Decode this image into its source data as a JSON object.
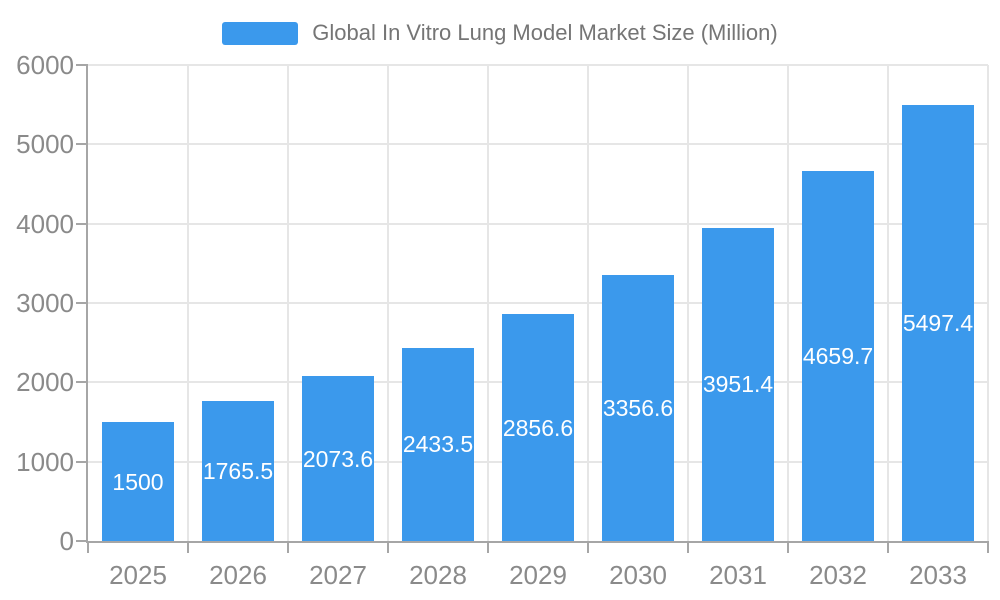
{
  "legend": {
    "label": "Global In Vitro Lung Model Market Size (Million)"
  },
  "chart_data": {
    "type": "bar",
    "title": "Global In Vitro Lung Model Market Size (Million)",
    "legend_entries": [
      "Global In Vitro Lung Model Market Size (Million)"
    ],
    "legend_position": "top-center",
    "categories": [
      "2025",
      "2026",
      "2027",
      "2028",
      "2029",
      "2030",
      "2031",
      "2032",
      "2033"
    ],
    "values": [
      1500,
      1765.5,
      2073.6,
      2433.5,
      2856.6,
      3356.6,
      3951.4,
      4659.7,
      5497.4
    ],
    "value_labels": [
      "1500",
      "1765.5",
      "2073.6",
      "2433.5",
      "2856.6",
      "3356.6",
      "3951.4",
      "4659.7",
      "5497.4"
    ],
    "value_label_position": "inside-center",
    "xlabel": "",
    "ylabel": "",
    "ylim": [
      0,
      6000
    ],
    "yticks": [
      0,
      1000,
      2000,
      3000,
      4000,
      5000,
      6000
    ],
    "ytick_labels": [
      "0",
      "1000",
      "2000",
      "3000",
      "4000",
      "5000",
      "6000"
    ],
    "grid": true
  },
  "colors": {
    "bar": "#3B99EC",
    "bar_label": "#ffffff",
    "axis_line": "#a6a6a6",
    "gridline": "#e6e6e6",
    "axis_label": "#8a8a8a",
    "legend_text": "#757575",
    "background": "#ffffff"
  }
}
